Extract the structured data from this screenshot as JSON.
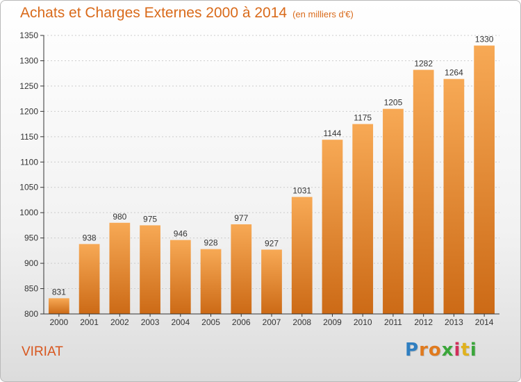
{
  "header": {
    "title": "Achats et Charges Externes 2000 à 2014",
    "subtitle": "(en milliers d'€)"
  },
  "footer": {
    "commune": "VIRIAT",
    "brand": "Proxiti",
    "brand_letters": [
      "P",
      "r",
      "o",
      "x",
      "i",
      "t",
      "i"
    ],
    "brand_colors": [
      "#2f7fc1",
      "#e07a1e",
      "#e07a1e",
      "#3aa63a",
      "#d12f5b",
      "#e0b21e",
      "#3aa63a"
    ]
  },
  "colors": {
    "title": "#d96a1a",
    "bar_top": "#f7a955",
    "bar_bottom": "#cc6a16",
    "axis": "#333333",
    "grid": "#cccccc"
  },
  "chart_data": {
    "type": "bar",
    "title": "Achats et Charges Externes 2000 à 2014",
    "subtitle": "(en milliers d'€)",
    "categories": [
      "2000",
      "2001",
      "2002",
      "2003",
      "2004",
      "2005",
      "2006",
      "2007",
      "2008",
      "2009",
      "2010",
      "2011",
      "2012",
      "2013",
      "2014"
    ],
    "values": [
      831,
      938,
      980,
      975,
      946,
      928,
      977,
      927,
      1031,
      1144,
      1175,
      1205,
      1282,
      1264,
      1330
    ],
    "ylim": [
      800,
      1350
    ],
    "yticks": [
      800,
      850,
      900,
      950,
      1000,
      1050,
      1100,
      1150,
      1200,
      1250,
      1300,
      1350
    ],
    "xlabel": "",
    "ylabel": "",
    "grid": true
  }
}
